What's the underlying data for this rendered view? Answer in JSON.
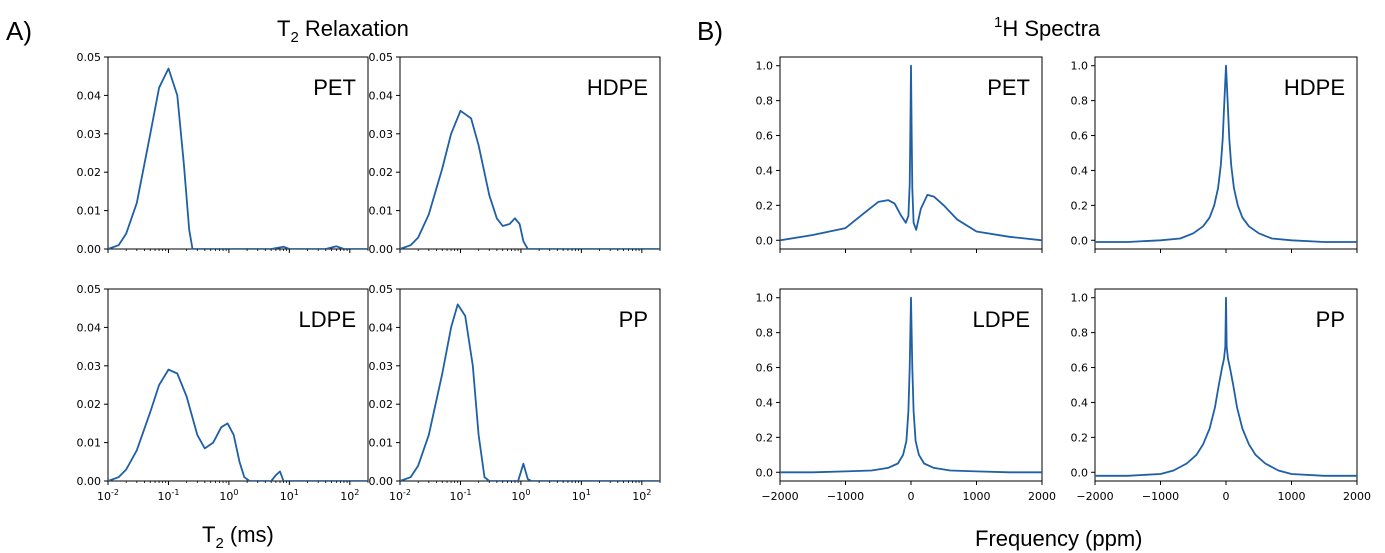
{
  "figure": {
    "panel_a": {
      "letter": "A)",
      "title": {
        "main": "T",
        "sub": "2",
        "rest": " Relaxation"
      },
      "xlabel": {
        "main": "T",
        "sub": "2",
        "rest": " (ms)"
      }
    },
    "panel_b": {
      "letter": "B)",
      "title": {
        "sup": "1",
        "rest": "H Spectra"
      },
      "xlabel": "Frequency (ppm)"
    }
  },
  "chart_data": [
    {
      "id": "t2-pet",
      "type": "line",
      "panel": "A",
      "subplot_label": "PET",
      "xscale": "log",
      "xlim": [
        0.01,
        200
      ],
      "ylim": [
        0,
        0.05
      ],
      "yticks": [
        "0.00",
        "0.01",
        "0.02",
        "0.03",
        "0.04",
        "0.05"
      ],
      "show_xticklabels": false,
      "color": "#1f5fa6",
      "series": [
        {
          "x": [
            0.01,
            0.015,
            0.02,
            0.03,
            0.05,
            0.07,
            0.1,
            0.14,
            0.18,
            0.22,
            0.25,
            0.3,
            1,
            5,
            8,
            10,
            40,
            60,
            80,
            200
          ],
          "y": [
            0,
            0.001,
            0.004,
            0.012,
            0.03,
            0.042,
            0.047,
            0.04,
            0.022,
            0.005,
            0,
            0,
            0,
            0,
            0.0006,
            0,
            0,
            0.0007,
            0,
            0
          ]
        }
      ]
    },
    {
      "id": "t2-hdpe",
      "type": "line",
      "panel": "A",
      "subplot_label": "HDPE",
      "xscale": "log",
      "xlim": [
        0.01,
        200
      ],
      "ylim": [
        0,
        0.05
      ],
      "yticks": [
        "0.00",
        "0.01",
        "0.02",
        "0.03",
        "0.04",
        "0.05"
      ],
      "show_xticklabels": false,
      "color": "#1f5fa6",
      "series": [
        {
          "x": [
            0.01,
            0.015,
            0.02,
            0.03,
            0.05,
            0.07,
            0.1,
            0.15,
            0.2,
            0.3,
            0.4,
            0.5,
            0.65,
            0.8,
            0.95,
            1.1,
            1.3,
            10,
            200
          ],
          "y": [
            0,
            0.001,
            0.003,
            0.009,
            0.021,
            0.03,
            0.036,
            0.034,
            0.027,
            0.014,
            0.008,
            0.006,
            0.0065,
            0.008,
            0.0065,
            0.002,
            0,
            0,
            0
          ]
        }
      ]
    },
    {
      "id": "t2-ldpe",
      "type": "line",
      "panel": "A",
      "subplot_label": "LDPE",
      "xscale": "log",
      "xlim": [
        0.01,
        200
      ],
      "ylim": [
        0,
        0.05
      ],
      "yticks": [
        "0.00",
        "0.01",
        "0.02",
        "0.03",
        "0.04",
        "0.05"
      ],
      "show_xticklabels": true,
      "xticks": [
        "10^-2",
        "10^-1",
        "10^0",
        "10^1",
        "10^2"
      ],
      "color": "#1f5fa6",
      "series": [
        {
          "x": [
            0.01,
            0.015,
            0.02,
            0.03,
            0.05,
            0.07,
            0.1,
            0.14,
            0.2,
            0.3,
            0.4,
            0.55,
            0.75,
            0.95,
            1.2,
            1.5,
            1.8,
            2.2,
            5,
            6,
            7,
            8,
            200
          ],
          "y": [
            0,
            0.001,
            0.003,
            0.008,
            0.018,
            0.025,
            0.029,
            0.028,
            0.022,
            0.012,
            0.0085,
            0.01,
            0.014,
            0.015,
            0.012,
            0.005,
            0.001,
            0,
            0,
            0.0015,
            0.0025,
            0,
            0
          ]
        }
      ]
    },
    {
      "id": "t2-pp",
      "type": "line",
      "panel": "A",
      "subplot_label": "PP",
      "xscale": "log",
      "xlim": [
        0.01,
        200
      ],
      "ylim": [
        0,
        0.05
      ],
      "yticks": [
        "0.00",
        "0.01",
        "0.02",
        "0.03",
        "0.04",
        "0.05"
      ],
      "show_xticklabels": true,
      "xticks": [
        "10^-2",
        "10^-1",
        "10^0",
        "10^1",
        "10^2"
      ],
      "color": "#1f5fa6",
      "series": [
        {
          "x": [
            0.01,
            0.015,
            0.02,
            0.03,
            0.05,
            0.07,
            0.09,
            0.12,
            0.16,
            0.2,
            0.25,
            0.3,
            0.9,
            1.1,
            1.3,
            1.5,
            200
          ],
          "y": [
            0,
            0.001,
            0.004,
            0.012,
            0.028,
            0.04,
            0.046,
            0.043,
            0.03,
            0.012,
            0.001,
            0,
            0,
            0.0045,
            0.0005,
            0,
            0
          ]
        }
      ]
    },
    {
      "id": "h1-pet",
      "type": "line",
      "panel": "B",
      "subplot_label": "PET",
      "xlim": [
        -2000,
        2000
      ],
      "ylim": [
        -0.05,
        1.05
      ],
      "yticks": [
        "0.0",
        "0.2",
        "0.4",
        "0.6",
        "0.8",
        "1.0"
      ],
      "show_xticklabels": false,
      "color": "#1f5fa6",
      "series": [
        {
          "x": [
            -2000,
            -1500,
            -1000,
            -700,
            -500,
            -350,
            -250,
            -150,
            -80,
            -40,
            -20,
            -10,
            0,
            10,
            20,
            40,
            80,
            150,
            250,
            350,
            500,
            700,
            1000,
            1500,
            2000
          ],
          "y": [
            0.0,
            0.03,
            0.07,
            0.16,
            0.22,
            0.23,
            0.21,
            0.14,
            0.1,
            0.14,
            0.32,
            0.6,
            1.0,
            0.6,
            0.3,
            0.1,
            0.06,
            0.18,
            0.26,
            0.25,
            0.2,
            0.12,
            0.05,
            0.02,
            0.0
          ]
        }
      ]
    },
    {
      "id": "h1-hdpe",
      "type": "line",
      "panel": "B",
      "subplot_label": "HDPE",
      "xlim": [
        -2000,
        2000
      ],
      "ylim": [
        -0.05,
        1.05
      ],
      "yticks": [
        "0.0",
        "0.2",
        "0.4",
        "0.6",
        "0.8",
        "1.0"
      ],
      "show_xticklabels": false,
      "color": "#1f5fa6",
      "series": [
        {
          "x": [
            -2000,
            -1500,
            -1000,
            -700,
            -500,
            -350,
            -250,
            -180,
            -120,
            -80,
            -50,
            -30,
            0,
            30,
            50,
            80,
            120,
            180,
            250,
            350,
            500,
            700,
            1000,
            1500,
            2000
          ],
          "y": [
            -0.01,
            -0.01,
            0.0,
            0.01,
            0.04,
            0.08,
            0.13,
            0.2,
            0.3,
            0.43,
            0.58,
            0.75,
            1.0,
            0.75,
            0.58,
            0.43,
            0.3,
            0.2,
            0.13,
            0.08,
            0.04,
            0.01,
            0.0,
            -0.01,
            -0.01
          ]
        }
      ]
    },
    {
      "id": "h1-ldpe",
      "type": "line",
      "panel": "B",
      "subplot_label": "LDPE",
      "xlim": [
        -2000,
        2000
      ],
      "ylim": [
        -0.05,
        1.05
      ],
      "yticks": [
        "0.0",
        "0.2",
        "0.4",
        "0.6",
        "0.8",
        "1.0"
      ],
      "show_xticklabels": true,
      "xticks": [
        "−2000",
        "−1000",
        "0",
        "1000",
        "2000"
      ],
      "color": "#1f5fa6",
      "series": [
        {
          "x": [
            -2000,
            -1500,
            -1000,
            -600,
            -350,
            -200,
            -120,
            -70,
            -40,
            -20,
            0,
            20,
            40,
            70,
            120,
            200,
            350,
            600,
            1000,
            1500,
            2000
          ],
          "y": [
            0.0,
            0.0,
            0.005,
            0.01,
            0.025,
            0.05,
            0.1,
            0.18,
            0.35,
            0.6,
            1.0,
            0.6,
            0.35,
            0.18,
            0.1,
            0.05,
            0.025,
            0.01,
            0.005,
            0.0,
            0.0
          ]
        }
      ]
    },
    {
      "id": "h1-pp",
      "type": "line",
      "panel": "B",
      "subplot_label": "PP",
      "xlim": [
        -2000,
        2000
      ],
      "ylim": [
        -0.05,
        1.05
      ],
      "yticks": [
        "0.0",
        "0.2",
        "0.4",
        "0.6",
        "0.8",
        "1.0"
      ],
      "show_xticklabels": true,
      "xticks": [
        "−2000",
        "−1000",
        "0",
        "1000",
        "2000"
      ],
      "color": "#1f5fa6",
      "series": [
        {
          "x": [
            -2000,
            -1500,
            -1000,
            -800,
            -600,
            -450,
            -350,
            -250,
            -170,
            -110,
            -60,
            -30,
            -10,
            0,
            10,
            30,
            60,
            110,
            170,
            250,
            350,
            450,
            600,
            800,
            1000,
            1500,
            2000
          ],
          "y": [
            -0.02,
            -0.02,
            -0.01,
            0.01,
            0.05,
            0.1,
            0.16,
            0.25,
            0.37,
            0.5,
            0.6,
            0.65,
            0.72,
            1.0,
            0.72,
            0.65,
            0.6,
            0.5,
            0.37,
            0.25,
            0.16,
            0.1,
            0.05,
            0.01,
            -0.01,
            -0.02,
            -0.02
          ]
        }
      ]
    }
  ]
}
